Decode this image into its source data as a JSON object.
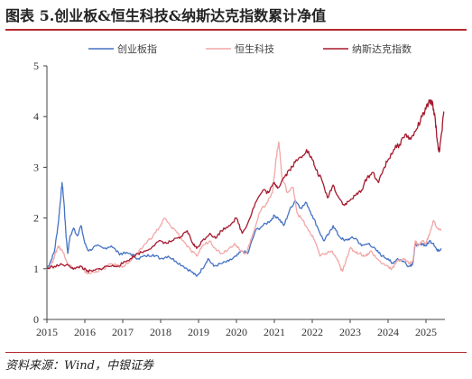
{
  "title": "图表 5.创业板&恒生科技&纳斯达克指数累计净值",
  "source": "资料来源：Wind，中银证券",
  "colors": {
    "accent_rule": "#b3282d"
  },
  "chart_data": {
    "type": "line",
    "title": "图表 5.创业板&恒生科技&纳斯达克指数累计净值",
    "xlabel": "",
    "ylabel": "",
    "x_ticks": [
      "2015",
      "2016",
      "2017",
      "2018",
      "2019",
      "2020",
      "2021",
      "2022",
      "2023",
      "2024",
      "2025"
    ],
    "y_ticks": [
      "0",
      "1",
      "2",
      "3",
      "4",
      "5"
    ],
    "xlim": [
      2015.0,
      2025.5
    ],
    "ylim": [
      0,
      5
    ],
    "grid": false,
    "legend_position": "top",
    "series": [
      {
        "name": "创业板指",
        "color": "#4472c4",
        "points": [
          [
            2015.0,
            1.0
          ],
          [
            2015.1,
            1.15
          ],
          [
            2015.2,
            1.35
          ],
          [
            2015.3,
            1.9
          ],
          [
            2015.35,
            2.3
          ],
          [
            2015.4,
            2.7
          ],
          [
            2015.45,
            2.3
          ],
          [
            2015.5,
            1.7
          ],
          [
            2015.55,
            1.3
          ],
          [
            2015.6,
            1.6
          ],
          [
            2015.7,
            1.8
          ],
          [
            2015.8,
            1.65
          ],
          [
            2015.9,
            1.85
          ],
          [
            2016.0,
            1.5
          ],
          [
            2016.1,
            1.35
          ],
          [
            2016.3,
            1.45
          ],
          [
            2016.5,
            1.4
          ],
          [
            2016.7,
            1.45
          ],
          [
            2016.9,
            1.3
          ],
          [
            2017.0,
            1.3
          ],
          [
            2017.2,
            1.3
          ],
          [
            2017.4,
            1.2
          ],
          [
            2017.6,
            1.25
          ],
          [
            2017.8,
            1.28
          ],
          [
            2018.0,
            1.2
          ],
          [
            2018.2,
            1.25
          ],
          [
            2018.4,
            1.15
          ],
          [
            2018.6,
            1.05
          ],
          [
            2018.8,
            0.95
          ],
          [
            2018.95,
            0.85
          ],
          [
            2019.1,
            1.0
          ],
          [
            2019.25,
            1.2
          ],
          [
            2019.4,
            1.05
          ],
          [
            2019.6,
            1.1
          ],
          [
            2019.8,
            1.15
          ],
          [
            2020.0,
            1.25
          ],
          [
            2020.15,
            1.35
          ],
          [
            2020.3,
            1.3
          ],
          [
            2020.5,
            1.75
          ],
          [
            2020.7,
            1.85
          ],
          [
            2020.9,
            1.95
          ],
          [
            2021.0,
            2.05
          ],
          [
            2021.1,
            2.0
          ],
          [
            2021.25,
            1.85
          ],
          [
            2021.4,
            2.15
          ],
          [
            2021.55,
            2.35
          ],
          [
            2021.7,
            2.2
          ],
          [
            2021.85,
            2.3
          ],
          [
            2022.0,
            2.05
          ],
          [
            2022.15,
            1.8
          ],
          [
            2022.3,
            1.55
          ],
          [
            2022.45,
            1.7
          ],
          [
            2022.55,
            1.85
          ],
          [
            2022.7,
            1.65
          ],
          [
            2022.85,
            1.55
          ],
          [
            2023.0,
            1.6
          ],
          [
            2023.15,
            1.6
          ],
          [
            2023.3,
            1.45
          ],
          [
            2023.5,
            1.5
          ],
          [
            2023.7,
            1.35
          ],
          [
            2023.85,
            1.25
          ],
          [
            2024.0,
            1.2
          ],
          [
            2024.1,
            1.1
          ],
          [
            2024.25,
            1.2
          ],
          [
            2024.4,
            1.15
          ],
          [
            2024.55,
            1.05
          ],
          [
            2024.65,
            1.1
          ],
          [
            2024.72,
            1.5
          ],
          [
            2024.8,
            1.45
          ],
          [
            2024.9,
            1.5
          ],
          [
            2025.0,
            1.45
          ],
          [
            2025.1,
            1.55
          ],
          [
            2025.2,
            1.5
          ],
          [
            2025.3,
            1.35
          ],
          [
            2025.4,
            1.4
          ]
        ]
      },
      {
        "name": "恒生科技",
        "color": "#f2a7a7",
        "points": [
          [
            2015.0,
            1.0
          ],
          [
            2015.1,
            1.05
          ],
          [
            2015.2,
            1.25
          ],
          [
            2015.3,
            1.45
          ],
          [
            2015.35,
            1.4
          ],
          [
            2015.45,
            1.3
          ],
          [
            2015.55,
            1.1
          ],
          [
            2015.7,
            1.0
          ],
          [
            2015.9,
            1.05
          ],
          [
            2016.0,
            0.95
          ],
          [
            2016.1,
            0.9
          ],
          [
            2016.3,
            0.95
          ],
          [
            2016.5,
            1.0
          ],
          [
            2016.7,
            1.1
          ],
          [
            2016.9,
            1.05
          ],
          [
            2017.0,
            1.05
          ],
          [
            2017.2,
            1.15
          ],
          [
            2017.4,
            1.3
          ],
          [
            2017.6,
            1.5
          ],
          [
            2017.8,
            1.65
          ],
          [
            2018.0,
            1.85
          ],
          [
            2018.1,
            2.0
          ],
          [
            2018.25,
            1.85
          ],
          [
            2018.4,
            1.75
          ],
          [
            2018.6,
            1.55
          ],
          [
            2018.8,
            1.35
          ],
          [
            2018.95,
            1.25
          ],
          [
            2019.1,
            1.45
          ],
          [
            2019.3,
            1.55
          ],
          [
            2019.45,
            1.4
          ],
          [
            2019.6,
            1.3
          ],
          [
            2019.8,
            1.4
          ],
          [
            2019.95,
            1.5
          ],
          [
            2020.1,
            1.35
          ],
          [
            2020.25,
            1.3
          ],
          [
            2020.4,
            1.6
          ],
          [
            2020.6,
            2.1
          ],
          [
            2020.8,
            2.3
          ],
          [
            2020.95,
            2.5
          ],
          [
            2021.05,
            3.2
          ],
          [
            2021.12,
            3.5
          ],
          [
            2021.2,
            2.8
          ],
          [
            2021.35,
            2.5
          ],
          [
            2021.5,
            2.6
          ],
          [
            2021.6,
            2.1
          ],
          [
            2021.75,
            1.95
          ],
          [
            2021.9,
            1.75
          ],
          [
            2022.0,
            1.65
          ],
          [
            2022.1,
            1.5
          ],
          [
            2022.2,
            1.25
          ],
          [
            2022.35,
            1.3
          ],
          [
            2022.5,
            1.35
          ],
          [
            2022.65,
            1.2
          ],
          [
            2022.75,
            1.0
          ],
          [
            2022.8,
            0.95
          ],
          [
            2022.9,
            1.2
          ],
          [
            2023.0,
            1.4
          ],
          [
            2023.1,
            1.35
          ],
          [
            2023.25,
            1.3
          ],
          [
            2023.4,
            1.25
          ],
          [
            2023.55,
            1.35
          ],
          [
            2023.7,
            1.2
          ],
          [
            2023.85,
            1.1
          ],
          [
            2024.0,
            1.05
          ],
          [
            2024.1,
            1.0
          ],
          [
            2024.25,
            1.15
          ],
          [
            2024.4,
            1.2
          ],
          [
            2024.55,
            1.1
          ],
          [
            2024.65,
            1.15
          ],
          [
            2024.72,
            1.55
          ],
          [
            2024.8,
            1.45
          ],
          [
            2024.9,
            1.55
          ],
          [
            2025.0,
            1.5
          ],
          [
            2025.1,
            1.7
          ],
          [
            2025.2,
            1.95
          ],
          [
            2025.3,
            1.8
          ],
          [
            2025.4,
            1.75
          ]
        ]
      },
      {
        "name": "纳斯达克指数",
        "color": "#a6192e",
        "points": [
          [
            2015.0,
            1.0
          ],
          [
            2015.2,
            1.05
          ],
          [
            2015.4,
            1.08
          ],
          [
            2015.6,
            1.05
          ],
          [
            2015.75,
            1.0
          ],
          [
            2015.9,
            1.05
          ],
          [
            2016.05,
            0.95
          ],
          [
            2016.2,
            0.95
          ],
          [
            2016.4,
            1.0
          ],
          [
            2016.6,
            1.05
          ],
          [
            2016.8,
            1.05
          ],
          [
            2017.0,
            1.1
          ],
          [
            2017.2,
            1.2
          ],
          [
            2017.4,
            1.3
          ],
          [
            2017.6,
            1.35
          ],
          [
            2017.8,
            1.45
          ],
          [
            2018.0,
            1.55
          ],
          [
            2018.15,
            1.5
          ],
          [
            2018.3,
            1.55
          ],
          [
            2018.5,
            1.6
          ],
          [
            2018.7,
            1.75
          ],
          [
            2018.85,
            1.5
          ],
          [
            2018.95,
            1.4
          ],
          [
            2019.1,
            1.55
          ],
          [
            2019.3,
            1.7
          ],
          [
            2019.45,
            1.6
          ],
          [
            2019.6,
            1.75
          ],
          [
            2019.8,
            1.85
          ],
          [
            2020.0,
            2.0
          ],
          [
            2020.15,
            1.7
          ],
          [
            2020.3,
            1.9
          ],
          [
            2020.5,
            2.3
          ],
          [
            2020.7,
            2.55
          ],
          [
            2020.85,
            2.5
          ],
          [
            2021.0,
            2.7
          ],
          [
            2021.1,
            2.6
          ],
          [
            2021.25,
            2.8
          ],
          [
            2021.4,
            2.95
          ],
          [
            2021.55,
            3.1
          ],
          [
            2021.7,
            3.2
          ],
          [
            2021.85,
            3.35
          ],
          [
            2022.0,
            3.15
          ],
          [
            2022.1,
            2.95
          ],
          [
            2022.25,
            2.75
          ],
          [
            2022.4,
            2.4
          ],
          [
            2022.55,
            2.65
          ],
          [
            2022.7,
            2.4
          ],
          [
            2022.85,
            2.25
          ],
          [
            2023.0,
            2.35
          ],
          [
            2023.15,
            2.45
          ],
          [
            2023.3,
            2.55
          ],
          [
            2023.45,
            2.8
          ],
          [
            2023.6,
            2.9
          ],
          [
            2023.75,
            2.7
          ],
          [
            2023.9,
            3.0
          ],
          [
            2024.0,
            3.15
          ],
          [
            2024.15,
            3.35
          ],
          [
            2024.3,
            3.45
          ],
          [
            2024.45,
            3.65
          ],
          [
            2024.6,
            3.55
          ],
          [
            2024.75,
            3.75
          ],
          [
            2024.9,
            4.0
          ],
          [
            2025.0,
            4.15
          ],
          [
            2025.1,
            4.3
          ],
          [
            2025.18,
            4.25
          ],
          [
            2025.25,
            3.9
          ],
          [
            2025.3,
            3.5
          ],
          [
            2025.35,
            3.3
          ],
          [
            2025.42,
            3.7
          ],
          [
            2025.47,
            4.1
          ]
        ]
      }
    ]
  }
}
